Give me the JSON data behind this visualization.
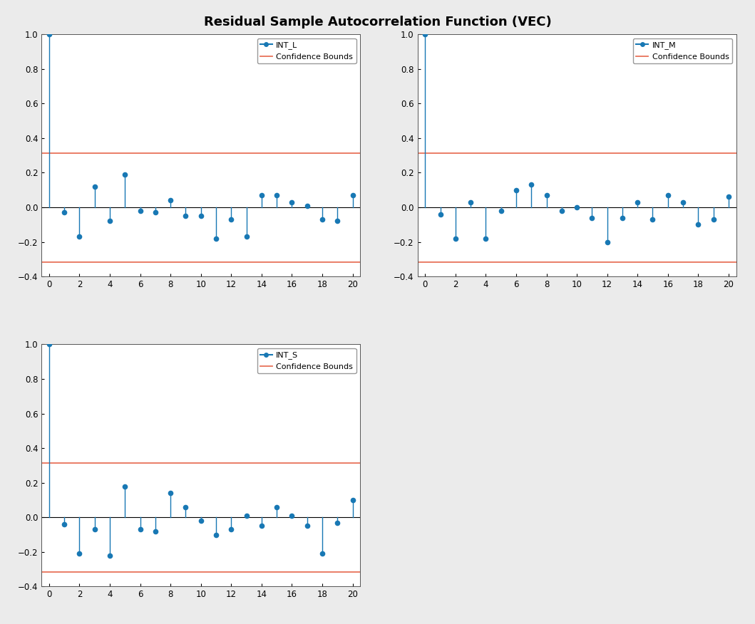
{
  "title": "Residual Sample Autocorrelation Function (VEC)",
  "title_fontsize": 13,
  "confidence_bound": 0.315,
  "confidence_color": "#E8735A",
  "line_color": "#1878B4",
  "marker_color": "#1878B4",
  "background_color": "#EBEBEB",
  "plot_background": "#FFFFFF",
  "lags": [
    0,
    1,
    2,
    3,
    4,
    5,
    6,
    7,
    8,
    9,
    10,
    11,
    12,
    13,
    14,
    15,
    16,
    17,
    18,
    19,
    20
  ],
  "INT_L": [
    1.0,
    -0.03,
    -0.17,
    0.12,
    -0.08,
    0.19,
    -0.02,
    -0.03,
    0.04,
    -0.05,
    -0.05,
    -0.18,
    -0.07,
    -0.17,
    0.07,
    0.07,
    0.03,
    0.01,
    -0.07,
    -0.08,
    0.07
  ],
  "INT_M": [
    1.0,
    -0.04,
    -0.18,
    0.03,
    -0.18,
    -0.02,
    0.1,
    0.13,
    0.07,
    -0.02,
    0.0,
    -0.06,
    -0.2,
    -0.06,
    0.03,
    -0.07,
    0.07,
    0.03,
    -0.1,
    -0.07,
    0.06
  ],
  "INT_S": [
    1.0,
    -0.04,
    -0.21,
    -0.07,
    -0.22,
    0.18,
    -0.07,
    -0.08,
    0.14,
    0.06,
    -0.02,
    -0.1,
    -0.07,
    0.01,
    -0.05,
    0.06,
    0.01,
    -0.05,
    -0.21,
    -0.03,
    0.1
  ],
  "ylim": [
    -0.4,
    1.0
  ],
  "xlim": [
    0,
    20
  ],
  "yticks": [
    -0.4,
    -0.2,
    0.0,
    0.2,
    0.4,
    0.6,
    0.8,
    1.0
  ],
  "xticks": [
    0,
    2,
    4,
    6,
    8,
    10,
    12,
    14,
    16,
    18,
    20
  ]
}
